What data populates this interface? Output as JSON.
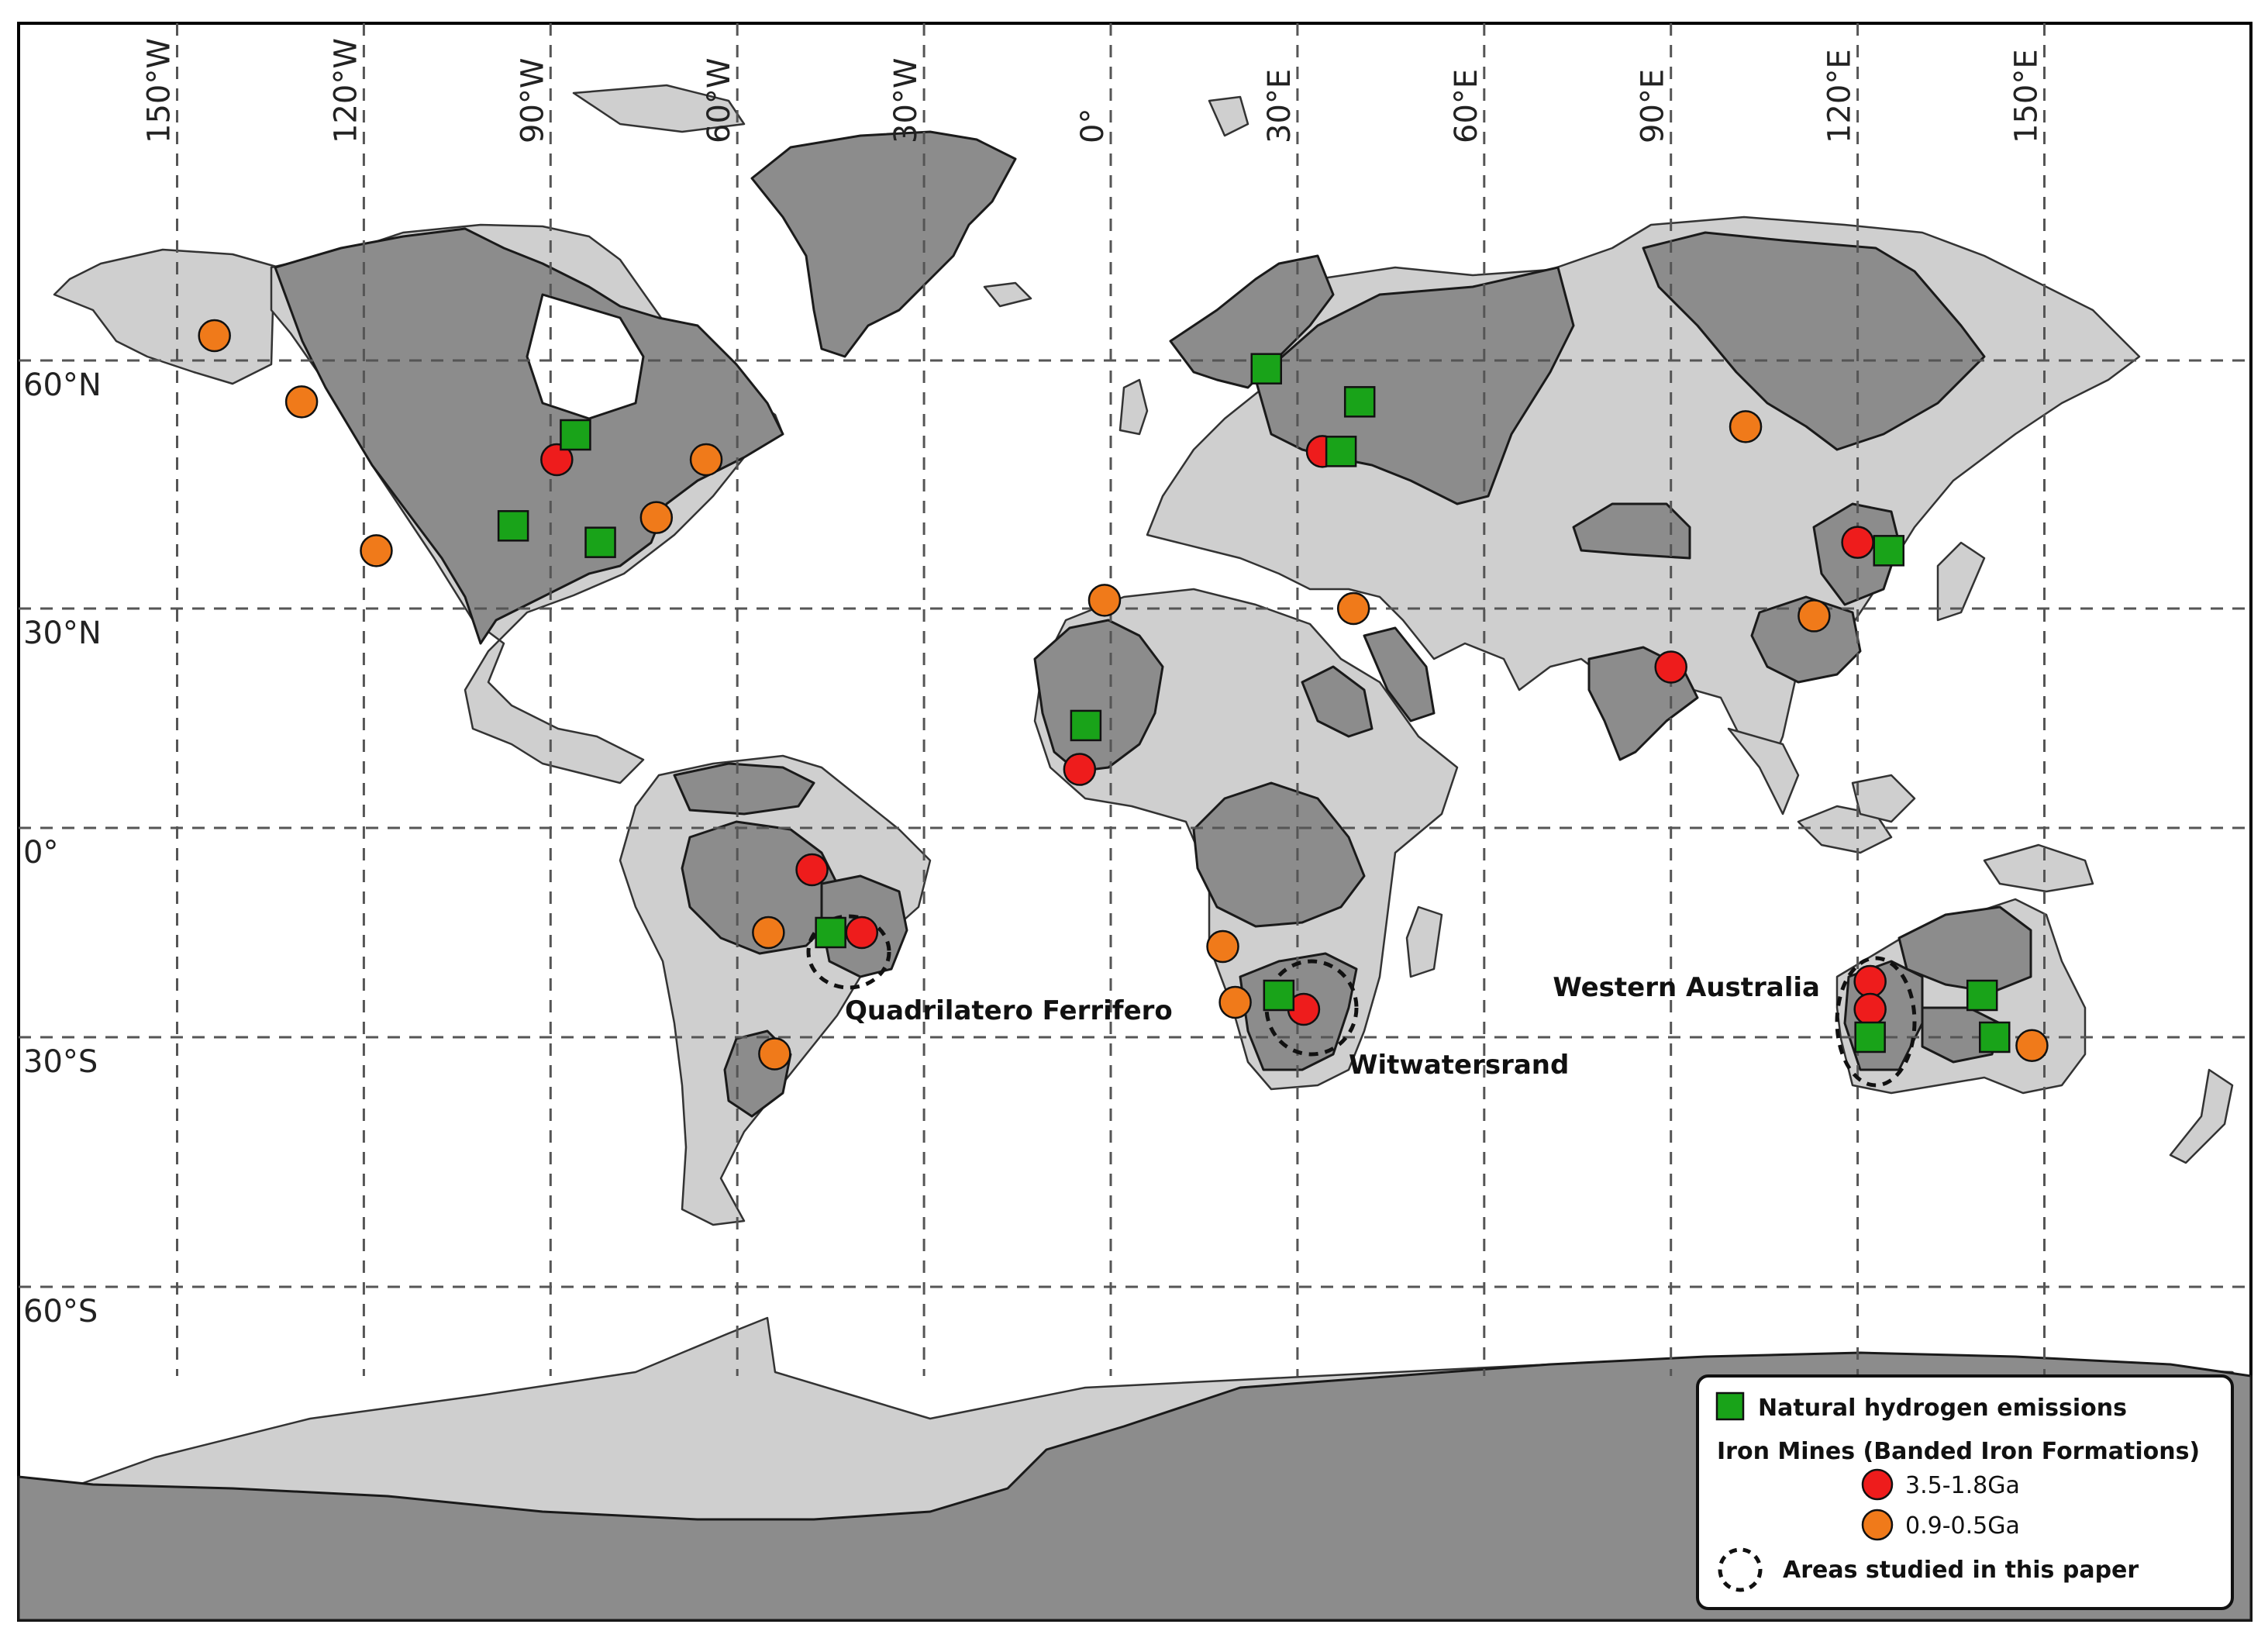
{
  "axes": {
    "lon_labels": [
      "150°W",
      "120°W",
      "90°W",
      "60°W",
      "30°W",
      "0°",
      "30°E",
      "60°E",
      "90°E",
      "120°E",
      "150°E"
    ],
    "lat_labels": [
      "60°N",
      "30°N",
      "0°",
      "30°S",
      "60°S"
    ]
  },
  "region_labels": {
    "quadrilatero": "Quadrilatero Ferrifero",
    "witwatersrand": "Witwatersrand",
    "western_australia": "Western Australia"
  },
  "legend": {
    "hydrogen": "Natural hydrogen emissions",
    "iron_title": "Iron Mines (Banded Iron Formations)",
    "old": "3.5-1.8Ga",
    "young": "0.9-0.5Ga",
    "studied": "Areas studied in this paper"
  },
  "colors": {
    "hydrogen": "#19a319",
    "old_bif": "#ee1c1c",
    "young_bif": "#f07a1a",
    "craton": "#8c8c8c",
    "land": "#cfcfcf",
    "ocean": "#ffffff"
  },
  "map_data": {
    "hydrogen_sites": [
      [
        -96,
        40
      ],
      [
        -86,
        51
      ],
      [
        -82,
        38
      ],
      [
        25,
        59
      ],
      [
        40,
        55
      ],
      [
        37,
        49
      ],
      [
        -4,
        14
      ],
      [
        -45,
        -15
      ],
      [
        27,
        -24
      ],
      [
        125,
        37
      ],
      [
        122,
        -30
      ],
      [
        140,
        -24
      ],
      [
        142,
        -30
      ]
    ],
    "bif_old": [
      [
        -89,
        48
      ],
      [
        34,
        49
      ],
      [
        -5,
        8
      ],
      [
        -48,
        -6
      ],
      [
        -40,
        -15
      ],
      [
        31,
        -26
      ],
      [
        120,
        38
      ],
      [
        90,
        22
      ],
      [
        122,
        -22
      ],
      [
        122,
        -26
      ]
    ],
    "bif_young": [
      [
        -144,
        63
      ],
      [
        -130,
        55
      ],
      [
        -118,
        37
      ],
      [
        -73,
        41
      ],
      [
        -65,
        48
      ],
      [
        -1,
        31
      ],
      [
        39,
        30
      ],
      [
        102,
        52
      ],
      [
        113,
        29
      ],
      [
        -55,
        -15
      ],
      [
        -54,
        -32
      ],
      [
        18,
        -17
      ],
      [
        20,
        -25
      ],
      [
        148,
        -31
      ]
    ],
    "studied_areas": [
      "quadrilatero",
      "witwatersrand",
      "western_australia"
    ]
  }
}
